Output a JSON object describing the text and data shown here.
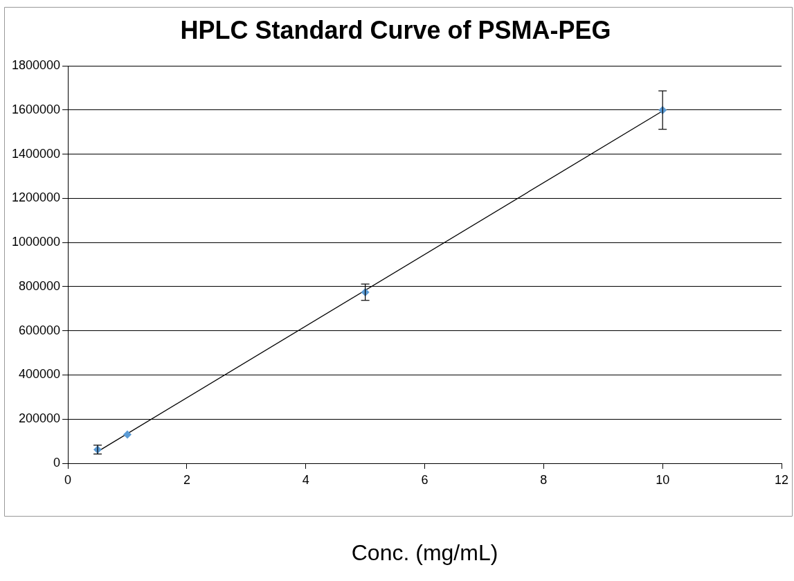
{
  "chart_data": {
    "type": "scatter",
    "title": "HPLC Standard Curve of PSMA-PEG",
    "xlabel": "Conc. (mg/mL)",
    "x": [
      0.5,
      1,
      5,
      10
    ],
    "series": [
      {
        "color": "#5b9bd5",
        "values": [
          62000,
          130000,
          775000,
          1600000
        ],
        "errors": [
          20000,
          null,
          37000,
          87000
        ]
      },
      {
        "type": "line",
        "color": "#000000",
        "x": [
          0.5,
          10
        ],
        "values": [
          53000,
          1596000
        ],
        "marker": "none"
      }
    ],
    "xlim": [
      0,
      12
    ],
    "xticks": [
      0,
      2,
      4,
      6,
      8,
      10,
      12
    ],
    "ylim": [
      0,
      1800000
    ],
    "yticks": [
      0,
      200000,
      400000,
      600000,
      800000,
      1000000,
      1200000,
      1400000,
      1600000,
      1800000
    ],
    "grid": "y",
    "legend": false,
    "marker": "diamond"
  }
}
